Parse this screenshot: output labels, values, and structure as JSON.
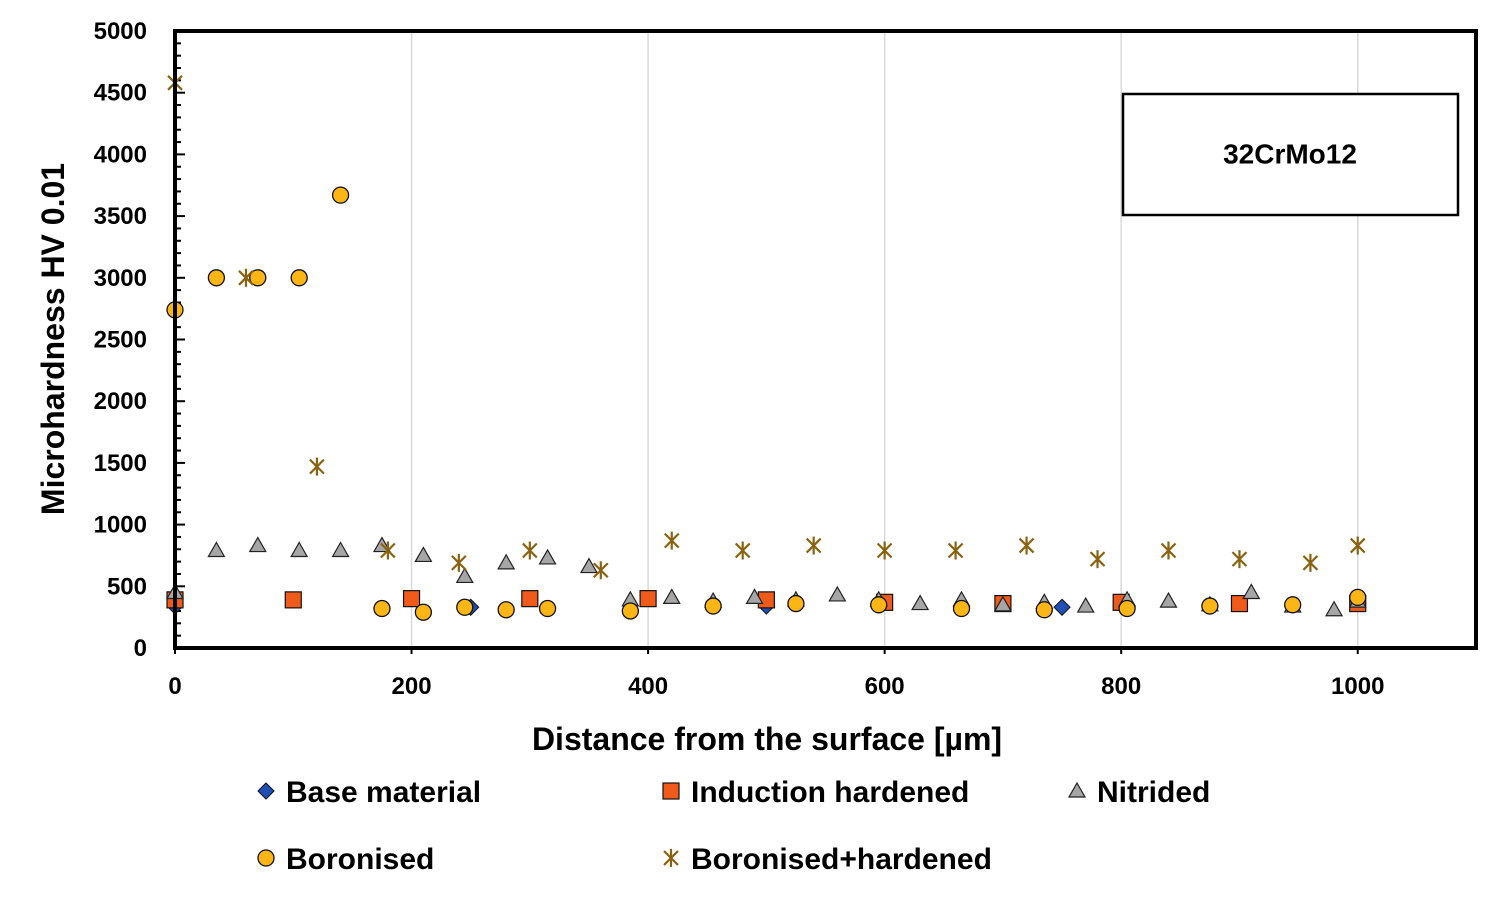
{
  "chart_data": {
    "type": "scatter",
    "title": "",
    "xlabel": "Distance from the surface [µm]",
    "ylabel": "Microhardness HV 0.01",
    "xlim": [
      0,
      1100
    ],
    "ylim": [
      0,
      5000
    ],
    "xticks": [
      0,
      200,
      400,
      600,
      800,
      1000
    ],
    "yticks": [
      0,
      500,
      1000,
      1500,
      2000,
      2500,
      3000,
      3500,
      4000,
      4500,
      5000
    ],
    "grid": "vertical",
    "annotation": "32CrMo12",
    "legend_position": "bottom",
    "series": [
      {
        "name": "Base material",
        "marker": "diamond",
        "color": "#1f4fb4",
        "points": [
          [
            0,
            340
          ],
          [
            250,
            330
          ],
          [
            500,
            340
          ],
          [
            750,
            330
          ],
          [
            1000,
            360
          ]
        ]
      },
      {
        "name": "Induction hardened",
        "marker": "square",
        "color": "#f05a1a",
        "points": [
          [
            0,
            390
          ],
          [
            100,
            390
          ],
          [
            200,
            400
          ],
          [
            300,
            400
          ],
          [
            400,
            400
          ],
          [
            500,
            390
          ],
          [
            600,
            370
          ],
          [
            700,
            360
          ],
          [
            800,
            370
          ],
          [
            900,
            360
          ],
          [
            1000,
            360
          ]
        ]
      },
      {
        "name": "Nitrided",
        "marker": "triangle",
        "color": "#a6a6a6",
        "points": [
          [
            0,
            450
          ],
          [
            35,
            790
          ],
          [
            70,
            830
          ],
          [
            105,
            790
          ],
          [
            140,
            790
          ],
          [
            175,
            830
          ],
          [
            210,
            750
          ],
          [
            245,
            580
          ],
          [
            280,
            690
          ],
          [
            315,
            730
          ],
          [
            350,
            660
          ],
          [
            385,
            390
          ],
          [
            420,
            410
          ],
          [
            455,
            380
          ],
          [
            490,
            410
          ],
          [
            525,
            390
          ],
          [
            560,
            430
          ],
          [
            595,
            390
          ],
          [
            630,
            360
          ],
          [
            665,
            390
          ],
          [
            700,
            350
          ],
          [
            735,
            370
          ],
          [
            770,
            340
          ],
          [
            805,
            390
          ],
          [
            840,
            380
          ],
          [
            875,
            350
          ],
          [
            910,
            450
          ],
          [
            945,
            340
          ],
          [
            980,
            310
          ],
          [
            1000,
            380
          ]
        ]
      },
      {
        "name": "Boronised",
        "marker": "circle",
        "color": "#fbb616",
        "points": [
          [
            0,
            2740
          ],
          [
            35,
            3000
          ],
          [
            70,
            3000
          ],
          [
            105,
            3000
          ],
          [
            140,
            3670
          ],
          [
            175,
            320
          ],
          [
            210,
            290
          ],
          [
            245,
            330
          ],
          [
            280,
            310
          ],
          [
            315,
            320
          ],
          [
            385,
            300
          ],
          [
            455,
            340
          ],
          [
            525,
            360
          ],
          [
            595,
            350
          ],
          [
            665,
            320
          ],
          [
            735,
            310
          ],
          [
            805,
            320
          ],
          [
            875,
            340
          ],
          [
            945,
            350
          ],
          [
            1000,
            410
          ]
        ]
      },
      {
        "name": "Boronised+hardened",
        "marker": "star",
        "color": "#8a6210",
        "points": [
          [
            0,
            4580
          ],
          [
            60,
            3000
          ],
          [
            120,
            1470
          ],
          [
            180,
            790
          ],
          [
            240,
            690
          ],
          [
            300,
            790
          ],
          [
            360,
            630
          ],
          [
            420,
            870
          ],
          [
            480,
            790
          ],
          [
            540,
            830
          ],
          [
            600,
            790
          ],
          [
            660,
            790
          ],
          [
            720,
            830
          ],
          [
            780,
            720
          ],
          [
            840,
            790
          ],
          [
            900,
            720
          ],
          [
            960,
            690
          ],
          [
            1000,
            830
          ]
        ]
      }
    ]
  }
}
